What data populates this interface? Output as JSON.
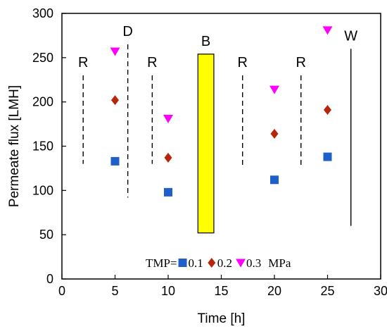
{
  "chart_data": {
    "type": "scatter",
    "xlabel": "Time [h]",
    "ylabel": "Permeate flux [LMH]",
    "xlim": [
      0,
      30
    ],
    "ylim": [
      0,
      300
    ],
    "xticks": [
      0,
      5,
      10,
      15,
      20,
      25,
      30
    ],
    "yticks": [
      0,
      50,
      100,
      150,
      200,
      250,
      300
    ],
    "grid": false,
    "legend": {
      "prefix": "TMP=",
      "unit": "MPa",
      "placement": "bottom-center"
    },
    "series": [
      {
        "name": "0.1",
        "marker": "square",
        "color": "#1f5fc9",
        "x": [
          5,
          10,
          20,
          25
        ],
        "y": [
          133,
          98,
          112,
          138
        ]
      },
      {
        "name": "0.2",
        "marker": "diamond",
        "color": "#b5260b",
        "x": [
          5,
          10,
          20,
          25
        ],
        "y": [
          202,
          137,
          164,
          191
        ]
      },
      {
        "name": "0.3",
        "marker": "triangle-down",
        "color": "#ff00ff",
        "x": [
          5,
          10,
          20,
          25
        ],
        "y": [
          257,
          181,
          214,
          281
        ]
      }
    ],
    "events": [
      {
        "label": "R",
        "x": 2,
        "y_from": 130,
        "y_to": 230,
        "style": "dashed"
      },
      {
        "label": "D",
        "x": 6.2,
        "y_from": 92,
        "y_to": 265,
        "style": "dashed"
      },
      {
        "label": "R",
        "x": 8.5,
        "y_from": 130,
        "y_to": 230,
        "style": "dashed"
      },
      {
        "label": "R",
        "x": 17,
        "y_from": 128,
        "y_to": 230,
        "style": "dashed"
      },
      {
        "label": "R",
        "x": 22.5,
        "y_from": 128,
        "y_to": 230,
        "style": "dashed"
      },
      {
        "label": "W",
        "x": 27.2,
        "y_from": 60,
        "y_to": 260,
        "style": "solid"
      }
    ],
    "highlight": {
      "label": "B",
      "x_from": 12.8,
      "x_to": 14.3,
      "y_from": 52,
      "y_to": 254,
      "color": "#ffff00"
    }
  }
}
